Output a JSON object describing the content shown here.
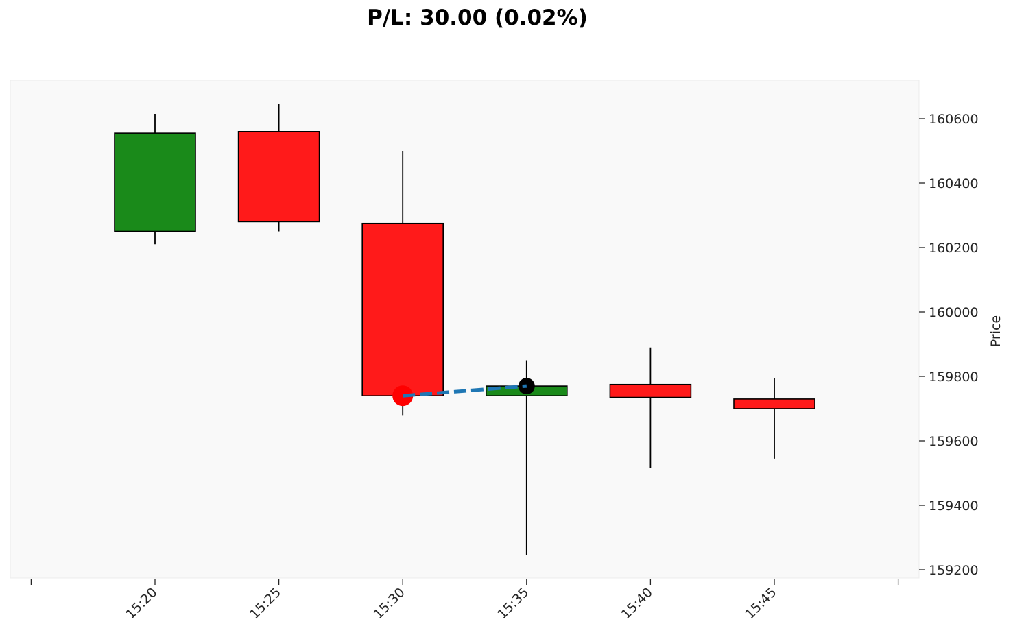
{
  "chart_data": {
    "type": "candlestick",
    "title": "P/L: 30.00 (0.02%)",
    "xlabel": "",
    "ylabel": "Price",
    "y_axis_side": "right",
    "ylim": [
      159175,
      160720
    ],
    "y_ticks": [
      159200,
      159400,
      159600,
      159800,
      160000,
      160200,
      160400,
      160600
    ],
    "x_ticks": [
      "15:20",
      "15:25",
      "15:30",
      "15:35",
      "15:40",
      "15:45"
    ],
    "grid": false,
    "colors": {
      "up": "#1a8a1a",
      "down": "#ff1a1a",
      "background": "#f9f9f9",
      "trade_line": "#1f77b4",
      "entry_marker": "#ff0000",
      "exit_marker": "#000000"
    },
    "candles": [
      {
        "time": "15:20",
        "open": 160250,
        "high": 160615,
        "low": 160210,
        "close": 160555
      },
      {
        "time": "15:25",
        "open": 160560,
        "high": 160645,
        "low": 160250,
        "close": 160280
      },
      {
        "time": "15:30",
        "open": 160275,
        "high": 160500,
        "low": 159680,
        "close": 159740
      },
      {
        "time": "15:35",
        "open": 159740,
        "high": 159850,
        "low": 159245,
        "close": 159770
      },
      {
        "time": "15:40",
        "open": 159775,
        "high": 159890,
        "low": 159515,
        "close": 159735
      },
      {
        "time": "15:45",
        "open": 159730,
        "high": 159795,
        "low": 159545,
        "close": 159700
      }
    ],
    "trade": {
      "entry": {
        "time": "15:30",
        "price": 159740
      },
      "exit": {
        "time": "15:35",
        "price": 159770
      }
    }
  }
}
